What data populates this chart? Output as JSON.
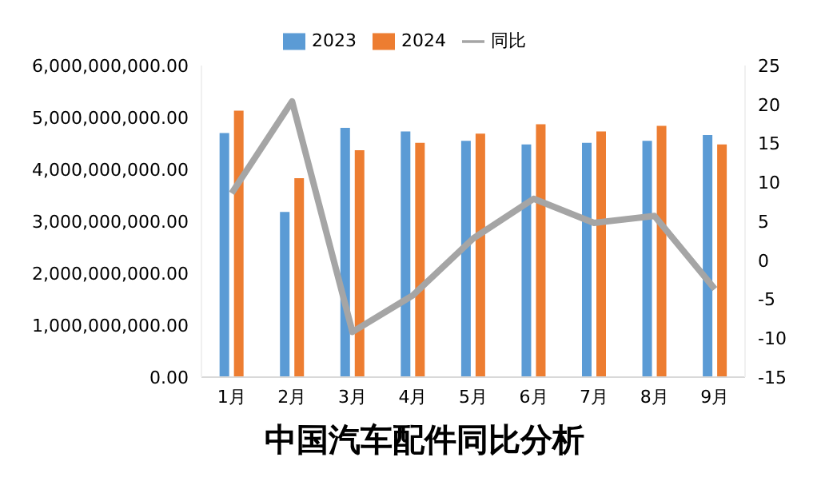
{
  "chart_data": {
    "type": "bar",
    "title": "中国汽车配件同比分析",
    "categories": [
      "1月",
      "2月",
      "3月",
      "4月",
      "5月",
      "6月",
      "7月",
      "8月",
      "9月"
    ],
    "series": [
      {
        "name": "2023",
        "color": "#5b9bd5",
        "values": [
          4700000000,
          3180000000,
          4800000000,
          4730000000,
          4550000000,
          4480000000,
          4510000000,
          4550000000,
          4660000000
        ]
      },
      {
        "name": "2024",
        "color": "#ed7d31",
        "values": [
          5130000000,
          3830000000,
          4370000000,
          4510000000,
          4690000000,
          4870000000,
          4730000000,
          4840000000,
          4480000000
        ]
      },
      {
        "name": "同比",
        "type": "line",
        "axis": "y2",
        "color": "#a5a5a5",
        "values": [
          8.6,
          20.4,
          -9.2,
          -4.5,
          2.8,
          7.9,
          4.8,
          5.7,
          -3.7
        ]
      }
    ],
    "ylim": [
      0,
      6000000000
    ],
    "yticks": [
      {
        "value": 0,
        "label": "0.00"
      },
      {
        "value": 1000000000,
        "label": "1,000,000,000.00"
      },
      {
        "value": 2000000000,
        "label": "2,000,000,000.00"
      },
      {
        "value": 3000000000,
        "label": "3,000,000,000.00"
      },
      {
        "value": 4000000000,
        "label": "4,000,000,000.00"
      },
      {
        "value": 5000000000,
        "label": "5,000,000,000.00"
      },
      {
        "value": 6000000000,
        "label": "6,000,000,000.00"
      }
    ],
    "y2lim": [
      -15,
      25
    ],
    "y2ticks": [
      -15,
      -10,
      -5,
      0,
      5,
      10,
      15,
      20,
      25
    ],
    "legend": "top",
    "grid": false,
    "marker": "none"
  }
}
